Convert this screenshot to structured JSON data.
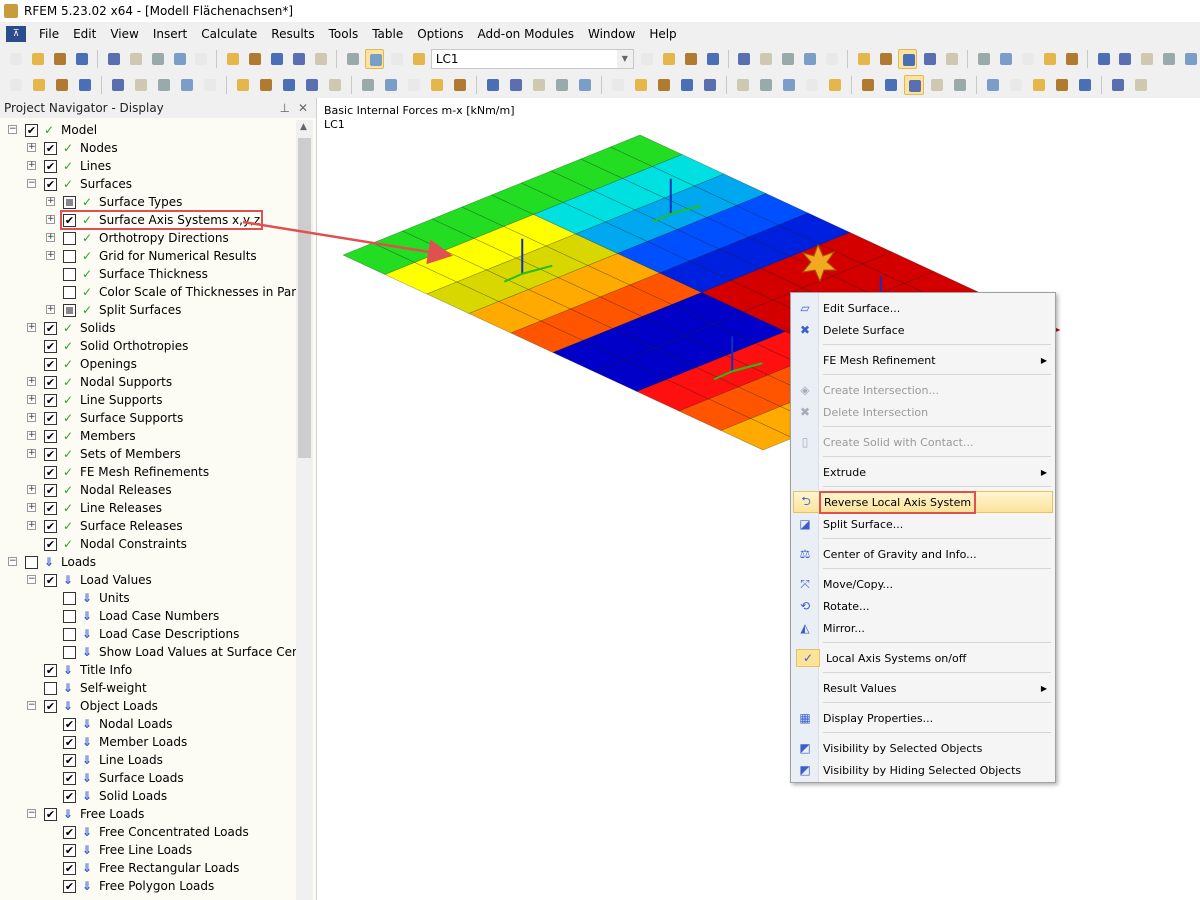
{
  "window": {
    "title": "RFEM 5.23.02 x64 - [Modell Flächenachsen*]"
  },
  "menu": [
    "File",
    "Edit",
    "View",
    "Insert",
    "Calculate",
    "Results",
    "Tools",
    "Table",
    "Options",
    "Add-on Modules",
    "Window",
    "Help"
  ],
  "toolbar": {
    "load_case": "LC1"
  },
  "navigator": {
    "title": "Project Navigator - Display",
    "pin": "⊥",
    "close": "✕",
    "items": [
      {
        "label": "Model",
        "level": 0,
        "exp": "-",
        "check": "on",
        "icon": "model"
      },
      {
        "label": "Nodes",
        "level": 1,
        "exp": "+",
        "check": "on",
        "icon": "model"
      },
      {
        "label": "Lines",
        "level": 1,
        "exp": "+",
        "check": "on",
        "icon": "model"
      },
      {
        "label": "Surfaces",
        "level": 1,
        "exp": "-",
        "check": "on",
        "icon": "model"
      },
      {
        "label": "Surface Types",
        "level": 2,
        "exp": "+",
        "check": "part",
        "icon": "model"
      },
      {
        "label": "Surface Axis Systems x,y,z",
        "level": 2,
        "exp": "+",
        "check": "on",
        "icon": "model",
        "highlight": true
      },
      {
        "label": "Orthotropy Directions",
        "level": 2,
        "exp": "+",
        "check": "off",
        "icon": "model"
      },
      {
        "label": "Grid for Numerical Results",
        "level": 2,
        "exp": "+",
        "check": "off",
        "icon": "model"
      },
      {
        "label": "Surface Thickness",
        "level": 2,
        "exp": "",
        "check": "off",
        "icon": "model"
      },
      {
        "label": "Color Scale of Thicknesses in Panel",
        "level": 2,
        "exp": "",
        "check": "off",
        "icon": "model"
      },
      {
        "label": "Split Surfaces",
        "level": 2,
        "exp": "+",
        "check": "part",
        "icon": "model"
      },
      {
        "label": "Solids",
        "level": 1,
        "exp": "+",
        "check": "on",
        "icon": "model"
      },
      {
        "label": "Solid Orthotropies",
        "level": 1,
        "exp": "",
        "check": "on",
        "icon": "model"
      },
      {
        "label": "Openings",
        "level": 1,
        "exp": "",
        "check": "on",
        "icon": "model"
      },
      {
        "label": "Nodal Supports",
        "level": 1,
        "exp": "+",
        "check": "on",
        "icon": "model"
      },
      {
        "label": "Line Supports",
        "level": 1,
        "exp": "+",
        "check": "on",
        "icon": "model"
      },
      {
        "label": "Surface Supports",
        "level": 1,
        "exp": "+",
        "check": "on",
        "icon": "model"
      },
      {
        "label": "Members",
        "level": 1,
        "exp": "+",
        "check": "on",
        "icon": "model"
      },
      {
        "label": "Sets of Members",
        "level": 1,
        "exp": "+",
        "check": "on",
        "icon": "model"
      },
      {
        "label": "FE Mesh Refinements",
        "level": 1,
        "exp": "",
        "check": "on",
        "icon": "model"
      },
      {
        "label": "Nodal Releases",
        "level": 1,
        "exp": "+",
        "check": "on",
        "icon": "model"
      },
      {
        "label": "Line Releases",
        "level": 1,
        "exp": "+",
        "check": "on",
        "icon": "model"
      },
      {
        "label": "Surface Releases",
        "level": 1,
        "exp": "+",
        "check": "on",
        "icon": "model"
      },
      {
        "label": "Nodal Constraints",
        "level": 1,
        "exp": "",
        "check": "on",
        "icon": "model"
      },
      {
        "label": "Loads",
        "level": 0,
        "exp": "-",
        "check": "off",
        "icon": "load"
      },
      {
        "label": "Load Values",
        "level": 1,
        "exp": "-",
        "check": "on",
        "icon": "load"
      },
      {
        "label": "Units",
        "level": 2,
        "exp": "",
        "check": "off",
        "icon": "load"
      },
      {
        "label": "Load Case Numbers",
        "level": 2,
        "exp": "",
        "check": "off",
        "icon": "load"
      },
      {
        "label": "Load Case Descriptions",
        "level": 2,
        "exp": "",
        "check": "off",
        "icon": "load"
      },
      {
        "label": "Show Load Values at Surface Center",
        "level": 2,
        "exp": "",
        "check": "off",
        "icon": "load"
      },
      {
        "label": "Title Info",
        "level": 1,
        "exp": "",
        "check": "on",
        "icon": "load"
      },
      {
        "label": "Self-weight",
        "level": 1,
        "exp": "",
        "check": "off",
        "icon": "load"
      },
      {
        "label": "Object Loads",
        "level": 1,
        "exp": "-",
        "check": "on",
        "icon": "load"
      },
      {
        "label": "Nodal Loads",
        "level": 2,
        "exp": "",
        "check": "on",
        "icon": "load"
      },
      {
        "label": "Member Loads",
        "level": 2,
        "exp": "",
        "check": "on",
        "icon": "load"
      },
      {
        "label": "Line Loads",
        "level": 2,
        "exp": "",
        "check": "on",
        "icon": "load"
      },
      {
        "label": "Surface Loads",
        "level": 2,
        "exp": "",
        "check": "on",
        "icon": "load"
      },
      {
        "label": "Solid Loads",
        "level": 2,
        "exp": "",
        "check": "on",
        "icon": "load"
      },
      {
        "label": "Free Loads",
        "level": 1,
        "exp": "-",
        "check": "on",
        "icon": "load"
      },
      {
        "label": "Free Concentrated Loads",
        "level": 2,
        "exp": "",
        "check": "on",
        "icon": "load"
      },
      {
        "label": "Free Line Loads",
        "level": 2,
        "exp": "",
        "check": "on",
        "icon": "load"
      },
      {
        "label": "Free Rectangular Loads",
        "level": 2,
        "exp": "",
        "check": "on",
        "icon": "load"
      },
      {
        "label": "Free Polygon Loads",
        "level": 2,
        "exp": "",
        "check": "on",
        "icon": "load"
      }
    ]
  },
  "viewport": {
    "title": "Basic Internal Forces m-x [kNm/m]",
    "load_case": "LC1"
  },
  "context_menu": {
    "items": [
      {
        "label": "Edit Surface...",
        "icon": "edit-surface-icon",
        "glyph": "▱"
      },
      {
        "label": "Delete Surface",
        "icon": "delete-surface-icon",
        "glyph": "✖"
      },
      {
        "sep": true
      },
      {
        "label": "FE Mesh Refinement",
        "submenu": true
      },
      {
        "sep": true
      },
      {
        "label": "Create Intersection...",
        "icon": "create-intersection-icon",
        "glyph": "◈",
        "disabled": true
      },
      {
        "label": "Delete Intersection",
        "icon": "delete-intersection-icon",
        "glyph": "✖",
        "disabled": true
      },
      {
        "sep": true
      },
      {
        "label": "Create Solid with Contact...",
        "icon": "create-solid-icon",
        "glyph": "▯",
        "disabled": true
      },
      {
        "sep": true
      },
      {
        "label": "Extrude",
        "submenu": true
      },
      {
        "sep": true
      },
      {
        "label": "Reverse Local Axis System",
        "icon": "reverse-axis-icon",
        "glyph": "⮌",
        "selected": true
      },
      {
        "label": "Split Surface...",
        "icon": "split-surface-icon",
        "glyph": "◪"
      },
      {
        "sep": true
      },
      {
        "label": "Center of Gravity and Info...",
        "icon": "center-of-gravity-icon",
        "glyph": "⚖"
      },
      {
        "sep": true
      },
      {
        "label": "Move/Copy...",
        "icon": "move-copy-icon",
        "glyph": "⤧"
      },
      {
        "label": "Rotate...",
        "icon": "rotate-icon",
        "glyph": "⟲"
      },
      {
        "label": "Mirror...",
        "icon": "mirror-icon",
        "glyph": "◭"
      },
      {
        "sep": true
      },
      {
        "label": "Local Axis Systems on/off",
        "icon": "checkmark-icon",
        "glyph": "✓",
        "checked": true
      },
      {
        "sep": true
      },
      {
        "label": "Result Values",
        "submenu": true
      },
      {
        "sep": true
      },
      {
        "label": "Display Properties...",
        "icon": "display-properties-icon",
        "glyph": "▦"
      },
      {
        "sep": true
      },
      {
        "label": "Visibility by Selected Objects",
        "icon": "visibility-selected-icon",
        "glyph": "◩"
      },
      {
        "label": "Visibility by Hiding Selected Objects",
        "icon": "visibility-hiding-icon",
        "glyph": "◩"
      }
    ]
  },
  "colors": {
    "highlight_border": "#e05050",
    "menu_selected": "#fbe39a",
    "result_red": "#d40000",
    "result_blue": "#0000c8"
  }
}
